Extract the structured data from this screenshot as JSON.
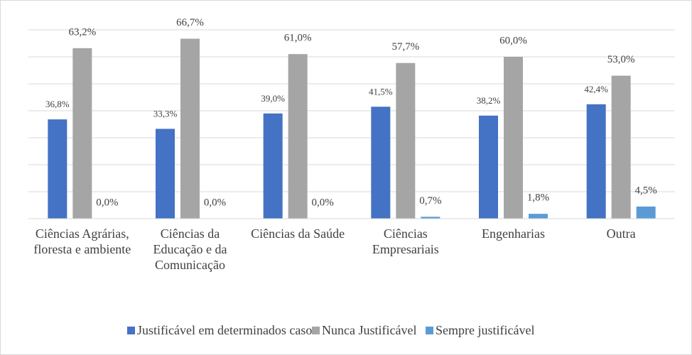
{
  "chart_data": {
    "type": "bar",
    "categories": [
      "Ciências Agrárias, floresta e ambiente",
      "Ciências da Educação e da Comunicação",
      "Ciências da Saúde",
      "Ciências Empresariais",
      "Engenharias",
      "Outra"
    ],
    "series": [
      {
        "name": "Justificável em determinados casos",
        "color": "#4472c4",
        "values": [
          36.8,
          33.3,
          39.0,
          41.5,
          38.2,
          42.4
        ],
        "value_labels": [
          "36,8%",
          "33,3%",
          "39,0%",
          "41,5%",
          "38,2%",
          "42,4%"
        ]
      },
      {
        "name": "Nunca Justificável",
        "color": "#a5a5a5",
        "values": [
          63.2,
          66.7,
          61.0,
          57.7,
          60.0,
          53.0
        ],
        "value_labels": [
          "63,2%",
          "66,7%",
          "61,0%",
          "57,7%",
          "60,0%",
          "53,0%"
        ]
      },
      {
        "name": "Sempre justificável",
        "color": "#5b9bd5",
        "values": [
          0.0,
          0.0,
          0.0,
          0.7,
          1.8,
          4.5
        ],
        "value_labels": [
          "0,0%",
          "0,0%",
          "0,0%",
          "0,7%",
          "1,8%",
          "4,5%"
        ]
      }
    ],
    "ylim": [
      0,
      70
    ],
    "yticks": [
      0,
      10,
      20,
      30,
      40,
      50,
      60,
      70
    ],
    "grid": true,
    "legend": "bottom"
  }
}
